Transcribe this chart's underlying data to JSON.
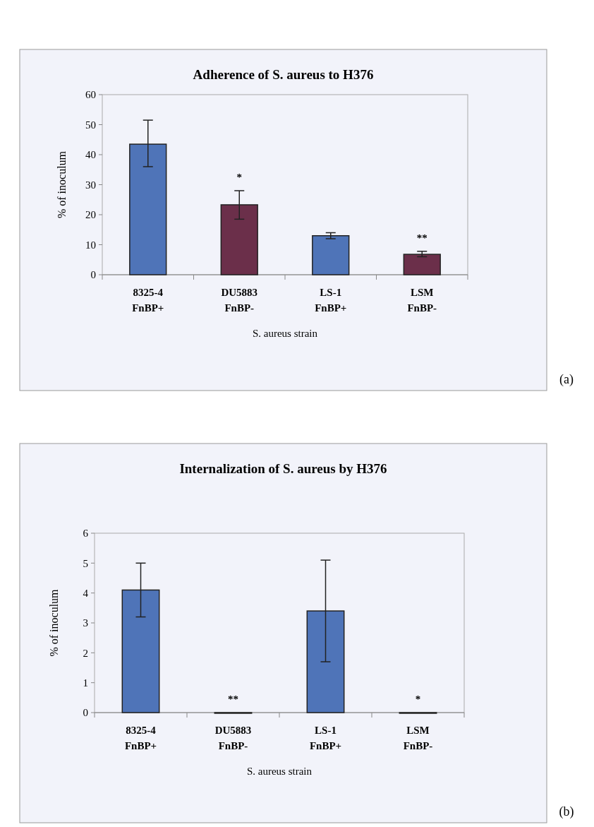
{
  "chart_data": [
    {
      "type": "bar",
      "title": "Adherence of S. aureus to H376",
      "xlabel": "S. aureus strain",
      "ylabel": "% of inoculum",
      "categories": [
        "8325-4\nFnBP+",
        "DU5883\nFnBP-",
        "LS-1\nFnBP+",
        "LSM\nFnBP-"
      ],
      "values": [
        43.5,
        23.3,
        13,
        6.8
      ],
      "colors": [
        "#4f74b8",
        "#6b2f4a",
        "#4f74b8",
        "#6b2f4a"
      ],
      "errors": [
        [
          36,
          51.5
        ],
        [
          18.5,
          28
        ],
        [
          12,
          14
        ],
        [
          6,
          7.8
        ]
      ],
      "ylim": [
        0,
        60
      ],
      "yticks": [
        0,
        10,
        20,
        30,
        40,
        50,
        60
      ],
      "grid": false,
      "annotations": [
        "*",
        "**",
        "(a)"
      ]
    },
    {
      "type": "bar",
      "title": "Internalization of S. aureus by H376",
      "xlabel": "S. aureus strain",
      "ylabel": "% of inoculum",
      "categories": [
        "8325-4\nFnBP+",
        "DU5883\nFnBP-",
        "LS-1\nFnBP+",
        "LSM\nFnBP-"
      ],
      "values": [
        4.1,
        0,
        3.4,
        0
      ],
      "colors": [
        "#4f74b8",
        "#4f74b8",
        "#4f74b8",
        "#4f74b8"
      ],
      "errors": [
        [
          3.2,
          5.0
        ],
        null,
        [
          1.7,
          5.1
        ],
        null
      ],
      "ylim": [
        0,
        6
      ],
      "yticks": [
        0,
        1,
        2,
        3,
        4,
        5,
        6
      ],
      "grid": false,
      "annotations": [
        "**",
        "*",
        "(b)"
      ]
    }
  ]
}
